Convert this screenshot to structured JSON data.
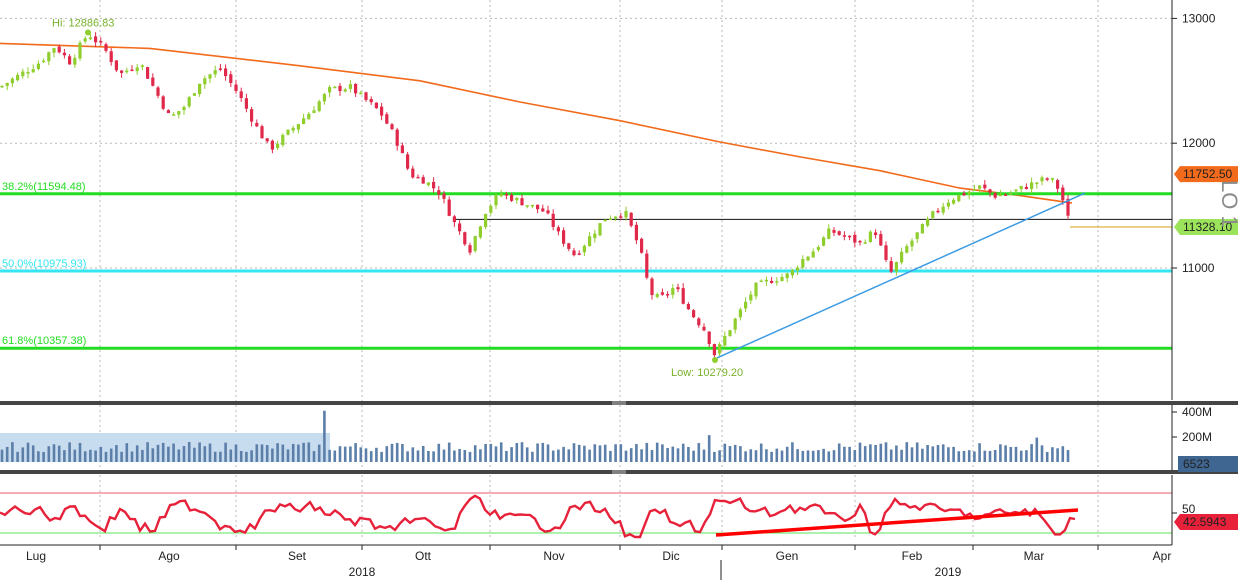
{
  "chart_data": {
    "type": "candlestick",
    "instrument": "LO 1",
    "x_axis": {
      "month_labels": [
        "Lug",
        "Ago",
        "Set",
        "Ott",
        "Nov",
        "Dic",
        "Gen",
        "Feb",
        "Mar",
        "Apr"
      ],
      "year_labels": [
        "2018",
        "2019"
      ]
    },
    "price_panel": {
      "y_ticks": [
        11000,
        12000,
        13000
      ],
      "ylim": [
        10250,
        13100
      ],
      "fib_levels": [
        {
          "label": "38.2%(11594.48)",
          "value": 11594.48,
          "color": "#22dd22"
        },
        {
          "label": "50.0%(10975.93)",
          "value": 10975.93,
          "color": "#33e6f2"
        },
        {
          "label": "61.8%(10357.38)",
          "value": 10357.38,
          "color": "#22dd22"
        }
      ],
      "high": {
        "label": "Hi: 12886.83",
        "value": 12886.83
      },
      "low": {
        "label": "Low: 10279.20",
        "value": 10279.2
      },
      "current_ma_value": "11752.50",
      "current_price": "11328.10",
      "horizontal_line_value": 11390,
      "moving_average_color": "#f26a1b",
      "up_color": "#8fce2d",
      "down_color": "#e0284a"
    },
    "volume_panel": {
      "y_ticks": [
        "200M",
        "400M"
      ],
      "current_value": "6523",
      "bar_color": "#5b7fa8"
    },
    "oscillator_panel": {
      "tick": "50",
      "current_value": "42.5943",
      "line_color": "#e8213a"
    }
  }
}
